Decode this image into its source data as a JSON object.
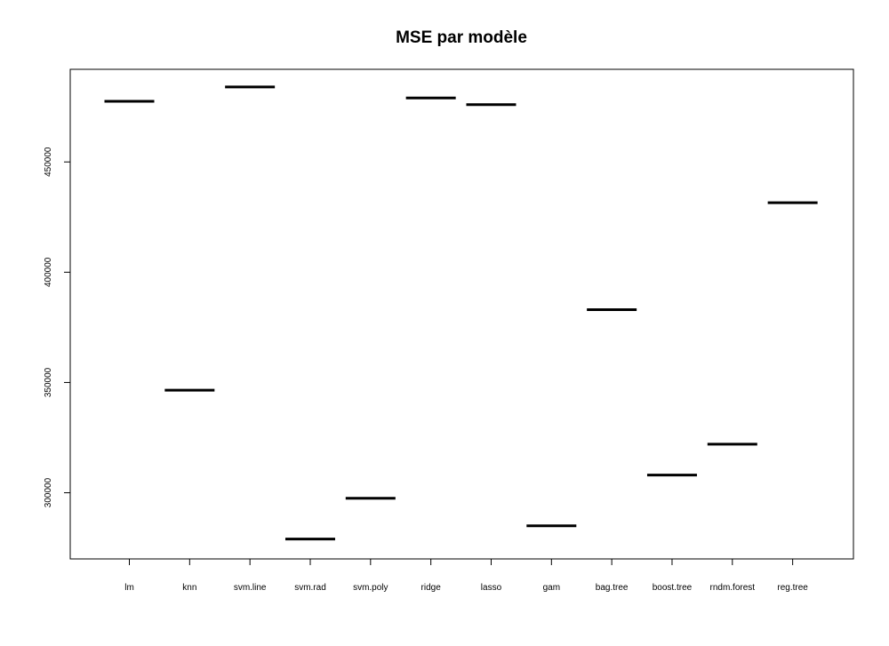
{
  "chart_data": {
    "type": "boxplot",
    "title": "MSE par modèle",
    "xlabel": "",
    "ylabel": "",
    "categories": [
      "lm",
      "knn",
      "svm.line",
      "svm.rad",
      "svm.poly",
      "ridge",
      "lasso",
      "gam",
      "bag.tree",
      "boost.tree",
      "rndm.forest",
      "reg.tree"
    ],
    "values": [
      477500,
      346500,
      484000,
      279000,
      297500,
      479000,
      476000,
      285000,
      383000,
      308000,
      322000,
      431500
    ],
    "ylim": [
      270000,
      492000
    ],
    "yticks": [
      300000,
      350000,
      400000,
      450000
    ],
    "ytick_labels": [
      "300000",
      "350000",
      "400000",
      "450000"
    ],
    "grid": false,
    "legend": "none",
    "line_color": "#000000"
  }
}
